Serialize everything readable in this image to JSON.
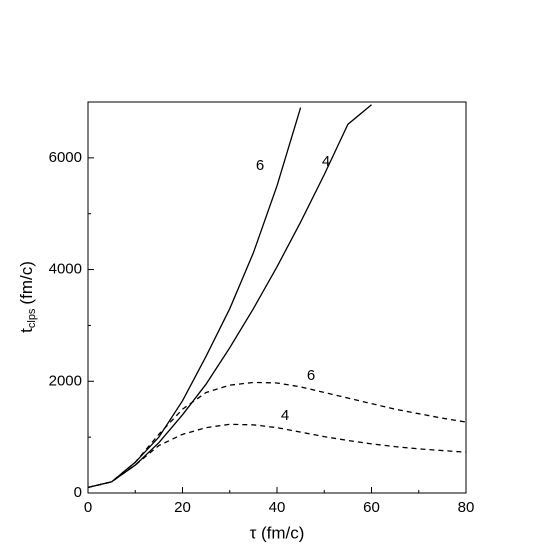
{
  "chart_data": {
    "type": "line",
    "xlabel": "τ (fm/c)",
    "ylabel": [
      "t",
      "clps",
      "(fm/c)"
    ],
    "x": [
      0,
      5,
      10,
      15,
      20,
      25,
      30,
      35,
      40,
      45,
      50,
      55,
      60,
      65,
      70,
      75,
      80
    ],
    "series": [
      {
        "name": "6",
        "color": "#000000",
        "dashed": false,
        "values": [
          100,
          200,
          550,
          1000,
          1650,
          2450,
          3300,
          4300,
          5500,
          6900,
          null,
          null,
          null,
          null,
          null,
          null,
          null
        ]
      },
      {
        "name": "4",
        "color": "#000000",
        "dashed": false,
        "values": [
          100,
          200,
          500,
          900,
          1400,
          1950,
          2600,
          3300,
          4050,
          4850,
          5700,
          6600,
          6950,
          null,
          null,
          null,
          null
        ]
      },
      {
        "name": "6",
        "color": "#000000",
        "dashed": true,
        "values": [
          100,
          200,
          550,
          1050,
          1500,
          1800,
          1930,
          1980,
          1970,
          1900,
          1800,
          1700,
          1600,
          1500,
          1420,
          1340,
          1270
        ]
      },
      {
        "name": "4",
        "color": "#000000",
        "dashed": true,
        "values": [
          100,
          200,
          500,
          850,
          1050,
          1170,
          1230,
          1220,
          1170,
          1090,
          1010,
          940,
          880,
          830,
          790,
          760,
          730
        ]
      }
    ],
    "xlim": [
      0,
      80
    ],
    "xticks": [
      0,
      20,
      40,
      60,
      80
    ],
    "xminorticks": [
      10,
      30,
      50,
      70
    ],
    "ylim": [
      0,
      7000
    ],
    "yticks": [
      0,
      2000,
      4000,
      6000
    ],
    "yminorticks": [
      1000,
      3000,
      5000
    ],
    "grid": false
  }
}
